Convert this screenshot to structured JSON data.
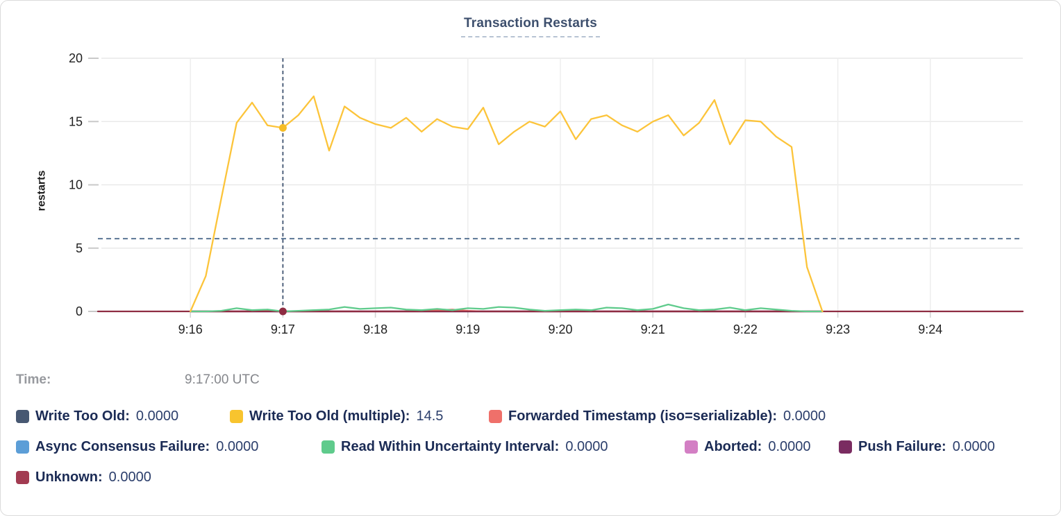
{
  "header": {
    "title": "Transaction Restarts"
  },
  "tooltip": {
    "time_label": "Time:",
    "time_value": "9:17:00 UTC"
  },
  "legend": {
    "items": [
      {
        "label": "Write Too Old:",
        "value": "0.0000",
        "color": "#475872"
      },
      {
        "label": "Write Too Old (multiple):",
        "value": "14.5",
        "color": "#f8c42e"
      },
      {
        "label": "Forwarded Timestamp (iso=serializable):",
        "value": "0.0000",
        "color": "#ef706a"
      },
      {
        "label": "Async Consensus Failure:",
        "value": "0.0000",
        "color": "#5c9ed7"
      },
      {
        "label": "Read Within Uncertainty Interval:",
        "value": "0.0000",
        "color": "#5fcb8c"
      },
      {
        "label": "Aborted:",
        "value": "0.0000",
        "color": "#d37fc4"
      },
      {
        "label": "Push Failure:",
        "value": "0.0000",
        "color": "#7a2c61"
      },
      {
        "label": "Unknown:",
        "value": "0.0000",
        "color": "#a23b51"
      }
    ]
  },
  "chart_data": {
    "type": "line",
    "title": "Transaction Restarts",
    "xlabel": "",
    "ylabel": "restarts",
    "ylim": [
      0,
      20
    ],
    "y_ticks": [
      0,
      5,
      10,
      15,
      20
    ],
    "x_tick_labels": [
      "9:16",
      "9:17",
      "9:18",
      "9:19",
      "9:20",
      "9:21",
      "9:22",
      "9:23",
      "9:24"
    ],
    "x_window_utc": [
      "9:15:00",
      "9:25:00"
    ],
    "grid": true,
    "legend_position": "bottom",
    "sample_step_seconds": 10,
    "threshold_dashed_value": 5.75,
    "crosshair": {
      "t_seconds_from_916": 60,
      "time": "9:17:00 UTC"
    },
    "hover_dots": [
      {
        "series": "Write Too Old (multiple)",
        "t_seconds_from_916": 60,
        "value": 14.5,
        "color": "#f6bd27"
      },
      {
        "series": "Unknown",
        "t_seconds_from_916": 60,
        "value": 0,
        "color": "#8e2c42"
      }
    ],
    "series": [
      {
        "name": "Write Too Old",
        "color": "#475872",
        "x_start_seconds": 0,
        "x_end_seconds": 410,
        "constant": 0
      },
      {
        "name": "Async Consensus Failure",
        "color": "#5c9ed7",
        "x_start_seconds": 0,
        "x_end_seconds": 410,
        "constant": 0
      },
      {
        "name": "Aborted",
        "color": "#d37fc4",
        "x_start_seconds": 0,
        "x_end_seconds": 410,
        "constant": 0
      },
      {
        "name": "Push Failure",
        "color": "#7a2c61",
        "x_start_seconds": 0,
        "x_end_seconds": 410,
        "constant": 0
      },
      {
        "name": "Forwarded Timestamp (iso=serializable)",
        "color": "#ef706a",
        "x_start_seconds": 0,
        "values": [
          0,
          0,
          0,
          0,
          0,
          0.08,
          0,
          0,
          0,
          0,
          0,
          0,
          0,
          0,
          0,
          0,
          0.1,
          0.15,
          0.05,
          0,
          0,
          0,
          0,
          0,
          0,
          0,
          0,
          0,
          0,
          0,
          0,
          0,
          0,
          0,
          0,
          0,
          0,
          0,
          0,
          0,
          0,
          0
        ]
      },
      {
        "name": "Unknown",
        "color": "#8e2c42",
        "x_start_seconds": -60,
        "x_end_seconds": 540,
        "constant": 0
      },
      {
        "name": "Read Within Uncertainty Interval",
        "color": "#5fcb8c",
        "x_start_seconds": 0,
        "values": [
          0,
          0,
          0.05,
          0.25,
          0.1,
          0.15,
          0,
          0.05,
          0.1,
          0.15,
          0.35,
          0.2,
          0.25,
          0.3,
          0.15,
          0.1,
          0.2,
          0.1,
          0.25,
          0.2,
          0.35,
          0.3,
          0.15,
          0.05,
          0.1,
          0.15,
          0.1,
          0.3,
          0.25,
          0.1,
          0.2,
          0.55,
          0.25,
          0.1,
          0.15,
          0.3,
          0.1,
          0.25,
          0.15,
          0.05,
          0,
          0
        ]
      },
      {
        "name": "Write Too Old (multiple)",
        "color": "#fcc43a",
        "x_start_seconds": 0,
        "values": [
          0,
          2.8,
          8.9,
          14.9,
          16.5,
          14.7,
          14.5,
          15.5,
          17.0,
          12.7,
          16.2,
          15.3,
          14.8,
          14.5,
          15.3,
          14.2,
          15.2,
          14.6,
          14.4,
          16.1,
          13.2,
          14.2,
          15.0,
          14.6,
          15.8,
          13.6,
          15.2,
          15.5,
          14.7,
          14.2,
          15.0,
          15.5,
          13.9,
          14.9,
          16.7,
          13.2,
          15.1,
          15.0,
          13.8,
          13.0,
          3.5,
          0
        ]
      }
    ]
  }
}
